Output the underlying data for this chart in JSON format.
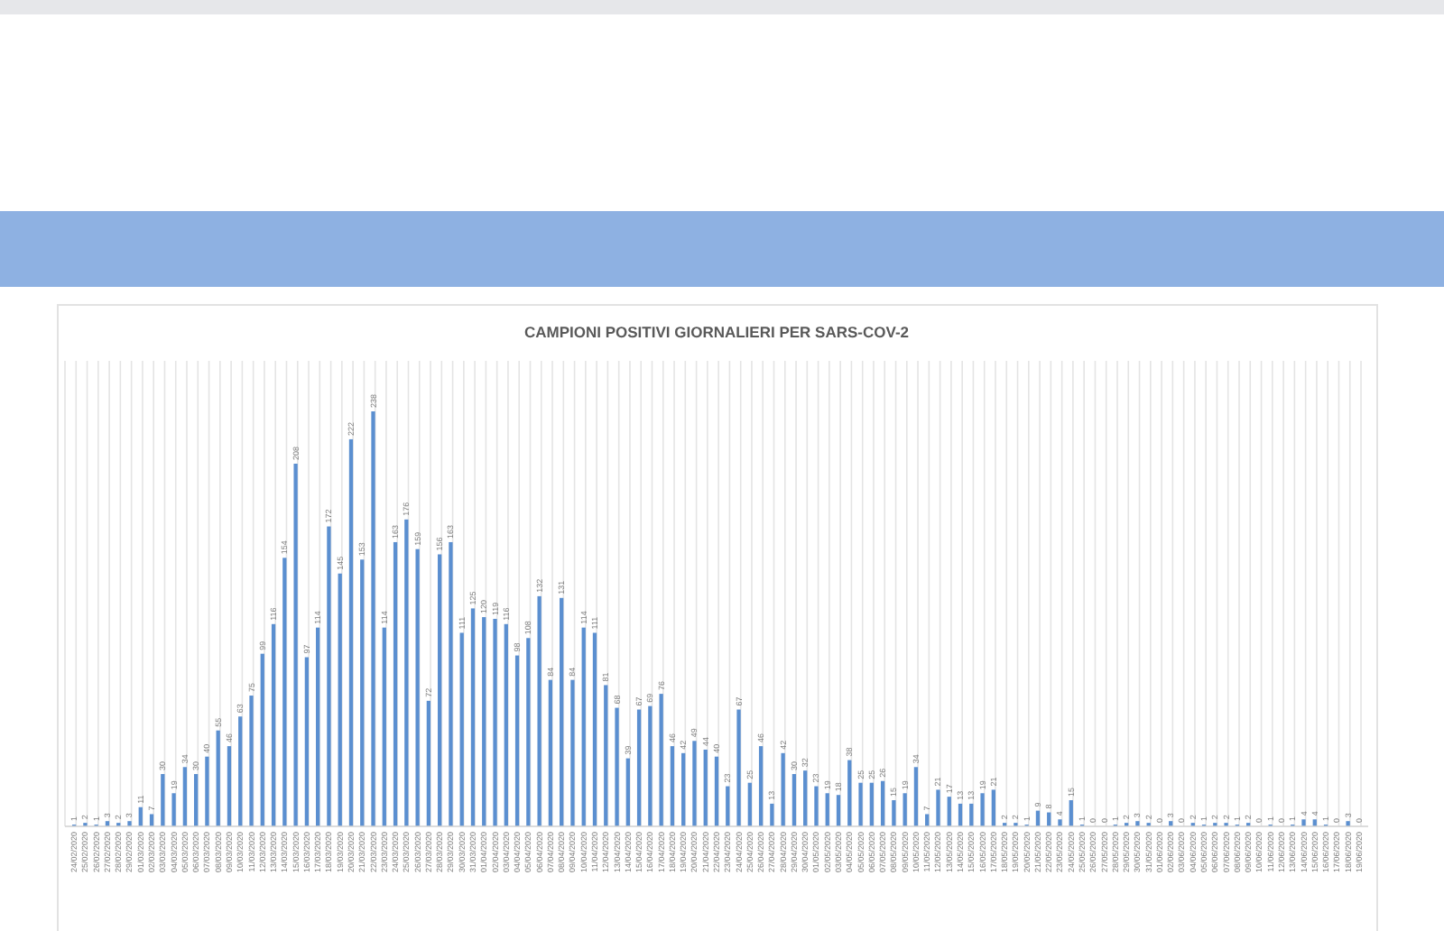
{
  "chart_data": {
    "type": "bar",
    "title": "CAMPIONI POSITIVI GIORNALIERI PER SARS-COV-2",
    "categories": [
      "24/02/2020",
      "25/02/2020",
      "26/02/2020",
      "27/02/2020",
      "28/02/2020",
      "29/02/2020",
      "01/03/2020",
      "02/03/2020",
      "03/03/2020",
      "04/03/2020",
      "05/03/2020",
      "06/03/2020",
      "07/03/2020",
      "08/03/2020",
      "09/03/2020",
      "10/03/2020",
      "11/03/2020",
      "12/03/2020",
      "13/03/2020",
      "14/03/2020",
      "15/03/2020",
      "16/03/2020",
      "17/03/2020",
      "18/03/2020",
      "19/03/2020",
      "20/03/2020",
      "21/03/2020",
      "22/03/2020",
      "23/03/2020",
      "24/03/2020",
      "25/03/2020",
      "26/03/2020",
      "27/03/2020",
      "28/03/2020",
      "29/03/2020",
      "30/03/2020",
      "31/03/2020",
      "01/04/2020",
      "02/04/2020",
      "03/04/2020",
      "04/04/2020",
      "05/04/2020",
      "06/04/2020",
      "07/04/2020",
      "08/04/2020",
      "09/04/2020",
      "10/04/2020",
      "11/04/2020",
      "12/04/2020",
      "13/04/2020",
      "14/04/2020",
      "15/04/2020",
      "16/04/2020",
      "17/04/2020",
      "18/04/2020",
      "19/04/2020",
      "20/04/2020",
      "21/04/2020",
      "22/04/2020",
      "23/04/2020",
      "24/04/2020",
      "25/04/2020",
      "26/04/2020",
      "27/04/2020",
      "28/04/2020",
      "29/04/2020",
      "30/04/2020",
      "01/05/2020",
      "02/05/2020",
      "03/05/2020",
      "04/05/2020",
      "05/05/2020",
      "06/05/2020",
      "07/05/2020",
      "08/05/2020",
      "09/05/2020",
      "10/05/2020",
      "11/05/2020",
      "12/05/2020",
      "13/05/2020",
      "14/05/2020",
      "15/05/2020",
      "16/05/2020",
      "17/05/2020",
      "18/05/2020",
      "19/05/2020",
      "20/05/2020",
      "21/05/2020",
      "22/05/2020",
      "23/05/2020",
      "24/05/2020",
      "25/05/2020",
      "26/05/2020",
      "27/05/2020",
      "28/05/2020",
      "29/05/2020",
      "30/05/2020",
      "31/05/2020",
      "01/06/2020",
      "02/06/2020",
      "03/06/2020",
      "04/06/2020",
      "05/06/2020",
      "06/06/2020",
      "07/06/2020",
      "08/06/2020",
      "09/06/2020",
      "10/06/2020",
      "11/06/2020",
      "12/06/2020",
      "13/06/2020",
      "14/06/2020",
      "15/06/2020",
      "16/06/2020",
      "17/06/2020",
      "18/06/2020",
      "19/06/2020"
    ],
    "values": [
      1,
      2,
      1,
      3,
      2,
      3,
      11,
      7,
      30,
      19,
      34,
      30,
      40,
      55,
      46,
      63,
      75,
      99,
      116,
      154,
      208,
      97,
      114,
      172,
      145,
      222,
      153,
      238,
      114,
      163,
      176,
      159,
      72,
      156,
      163,
      111,
      125,
      120,
      119,
      116,
      98,
      108,
      132,
      84,
      131,
      84,
      114,
      111,
      81,
      68,
      39,
      67,
      69,
      76,
      46,
      42,
      49,
      44,
      40,
      23,
      67,
      25,
      46,
      13,
      42,
      30,
      32,
      23,
      19,
      18,
      38,
      25,
      25,
      26,
      15,
      19,
      34,
      7,
      21,
      17,
      13,
      13,
      19,
      21,
      2,
      2,
      1,
      9,
      8,
      4,
      15,
      1,
      0,
      0,
      1,
      2,
      3,
      2,
      0,
      3,
      0,
      2,
      1,
      2,
      2,
      1,
      2,
      0,
      1,
      0,
      1,
      4,
      4,
      1,
      0,
      3,
      0
    ],
    "color": "#5b8fd0",
    "data_labels": true,
    "grid": "x"
  }
}
